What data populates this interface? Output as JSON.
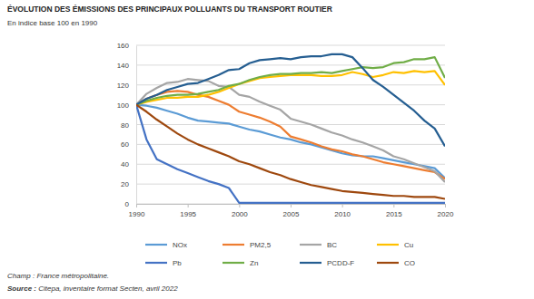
{
  "chart_data": {
    "type": "line",
    "title": "ÉVOLUTION DES ÉMISSIONS DES PRINCIPAUX POLLUANTS DU TRANSPORT ROUTIER",
    "subtitle": "En indice base 100 en 1990",
    "annotations": [
      "Champ : France métropolitaine.",
      "Source : Citepa, inventaire format Secten, avril 2022"
    ],
    "x": [
      1990,
      1991,
      1992,
      1993,
      1994,
      1995,
      1996,
      1997,
      1998,
      1999,
      2000,
      2001,
      2002,
      2003,
      2004,
      2005,
      2006,
      2007,
      2008,
      2009,
      2010,
      2011,
      2012,
      2013,
      2014,
      2015,
      2016,
      2017,
      2018,
      2019,
      2020
    ],
    "xlim": [
      1990,
      2020
    ],
    "xticks": [
      1990,
      1995,
      2000,
      2005,
      2010,
      2015,
      2020
    ],
    "ylim": [
      0,
      160
    ],
    "yticks": [
      0,
      20,
      40,
      60,
      80,
      100,
      120,
      140,
      160
    ],
    "grid": true,
    "legend": "bottom",
    "series": [
      {
        "name": "NOx",
        "color": "#5b9bd5",
        "values": [
          100,
          99,
          97,
          94,
          91,
          87,
          84,
          83,
          82,
          81,
          78,
          75,
          73,
          70,
          67,
          65,
          62,
          60,
          57,
          54,
          51,
          49,
          48,
          48,
          46,
          44,
          42,
          40,
          38,
          36,
          26
        ]
      },
      {
        "name": "PM2,5",
        "color": "#ed7d31",
        "values": [
          100,
          106,
          110,
          113,
          114,
          113,
          110,
          108,
          104,
          100,
          93,
          90,
          87,
          83,
          78,
          68,
          65,
          62,
          58,
          55,
          53,
          50,
          48,
          45,
          42,
          40,
          38,
          36,
          34,
          32,
          25
        ]
      },
      {
        "name": "BC",
        "color": "#a5a5a5",
        "values": [
          100,
          111,
          117,
          122,
          123,
          126,
          125,
          124,
          119,
          118,
          110,
          108,
          103,
          99,
          95,
          86,
          83,
          80,
          76,
          72,
          69,
          65,
          62,
          58,
          54,
          48,
          45,
          41,
          37,
          33,
          22
        ]
      },
      {
        "name": "Cu",
        "color": "#ffc000",
        "values": [
          100,
          103,
          105,
          107,
          107,
          108,
          108,
          110,
          113,
          117,
          121,
          124,
          127,
          128,
          129,
          130,
          130,
          130,
          129,
          129,
          130,
          133,
          131,
          128,
          130,
          133,
          132,
          134,
          133,
          134,
          120
        ]
      },
      {
        "name": "Pb",
        "color": "#4472c4",
        "values": [
          100,
          65,
          45,
          40,
          35,
          31,
          27,
          23,
          20,
          16,
          1,
          1,
          1,
          1,
          1,
          1,
          1,
          1,
          1,
          1,
          1,
          1,
          1,
          1,
          1,
          1,
          1,
          1,
          1,
          1,
          1
        ]
      },
      {
        "name": "Zn",
        "color": "#70ad47",
        "values": [
          100,
          104,
          107,
          109,
          110,
          110,
          111,
          113,
          115,
          119,
          121,
          125,
          128,
          130,
          131,
          131,
          132,
          132,
          133,
          132,
          134,
          136,
          138,
          137,
          138,
          142,
          143,
          146,
          146,
          148,
          127
        ]
      },
      {
        "name": "PCDD-F",
        "color": "#255e91",
        "values": [
          100,
          106,
          110,
          115,
          118,
          121,
          122,
          126,
          130,
          135,
          136,
          142,
          145,
          146,
          147,
          146,
          148,
          149,
          149,
          151,
          151,
          148,
          137,
          125,
          118,
          110,
          102,
          94,
          84,
          76,
          58
        ]
      },
      {
        "name": "CO",
        "color": "#9e480e",
        "values": [
          100,
          93,
          85,
          78,
          71,
          65,
          60,
          56,
          52,
          48,
          43,
          40,
          36,
          32,
          29,
          25,
          22,
          19,
          17,
          15,
          13,
          12,
          11,
          10,
          9,
          8,
          8,
          7,
          7,
          7,
          5
        ]
      }
    ]
  }
}
